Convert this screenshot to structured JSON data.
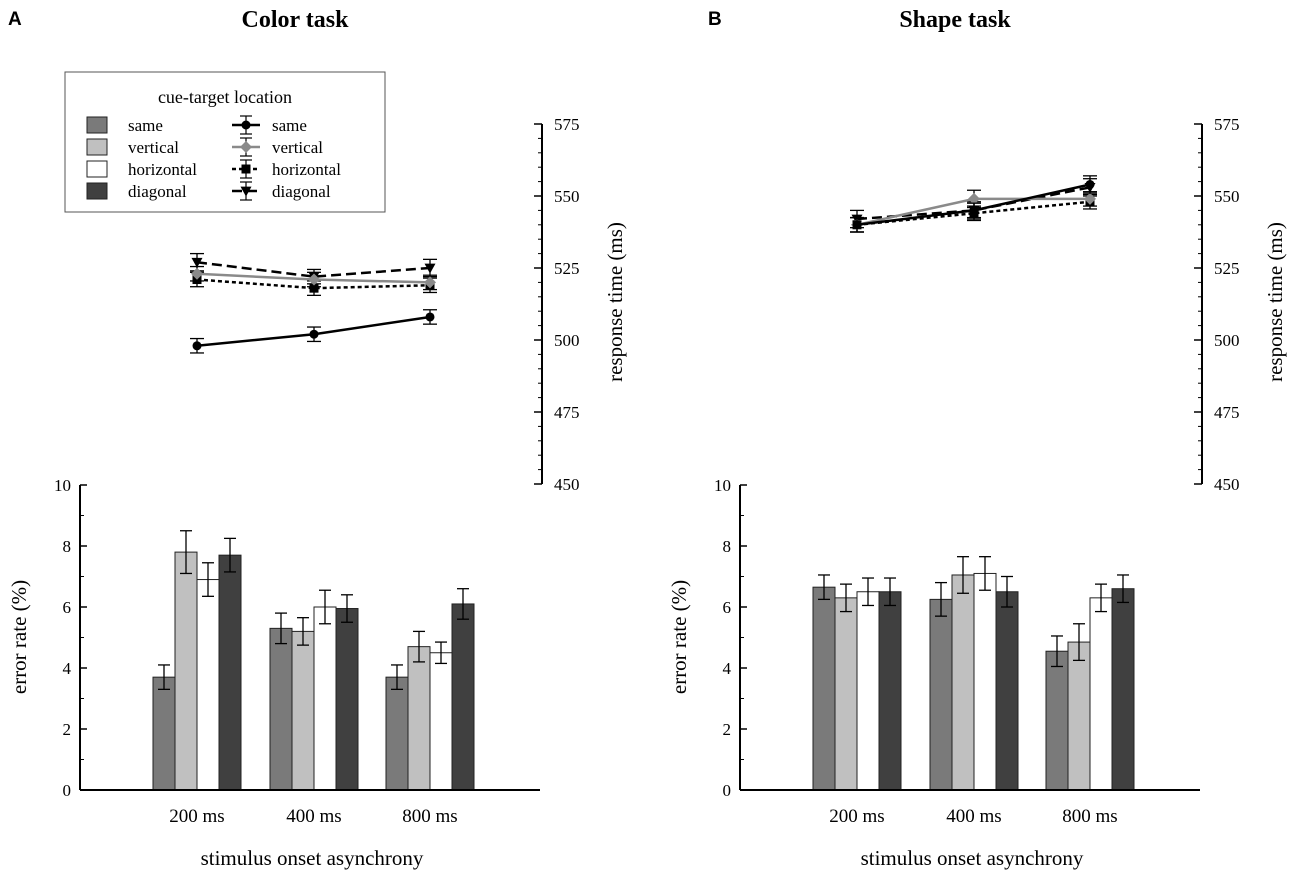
{
  "figure": {
    "legend": {
      "title": "cue-target location",
      "bar_entries": [
        "same",
        "vertical",
        "horizontal",
        "diagonal"
      ],
      "line_entries": [
        "same",
        "vertical",
        "horizontal",
        "diagonal"
      ]
    }
  },
  "colors": {
    "same_bar": "#7a7a7a",
    "vertical_bar": "#c0c0c0",
    "horizontal_bar": "#ffffff",
    "diagonal_bar": "#404040",
    "same_line": "#000000",
    "vertical_line": "#8a8a8a",
    "horizontal_line": "#000000",
    "diagonal_line": "#000000"
  },
  "chart_data": [
    {
      "panel_label": "A",
      "title": "Color task",
      "type": "bar",
      "xlabel": "stimulus onset asynchrony",
      "ylabel": "error rate (%)",
      "ylim": [
        0,
        10
      ],
      "yticks": [
        0,
        2,
        4,
        6,
        8,
        10
      ],
      "categories": [
        "200 ms",
        "400 ms",
        "800 ms"
      ],
      "series": [
        {
          "name": "same",
          "values": [
            3.7,
            5.3,
            3.7
          ],
          "errors": [
            0.4,
            0.5,
            0.4
          ]
        },
        {
          "name": "vertical",
          "values": [
            7.8,
            5.2,
            4.7
          ],
          "errors": [
            0.7,
            0.45,
            0.5
          ]
        },
        {
          "name": "horizontal",
          "values": [
            6.9,
            6.0,
            4.5
          ],
          "errors": [
            0.55,
            0.55,
            0.35
          ]
        },
        {
          "name": "diagonal",
          "values": [
            7.7,
            5.95,
            6.1
          ],
          "errors": [
            0.55,
            0.45,
            0.5
          ]
        }
      ],
      "rt": {
        "type": "line",
        "ylabel": "response time (ms)",
        "ylim": [
          450,
          575
        ],
        "yticks": [
          450,
          475,
          500,
          525,
          550,
          575
        ],
        "series": [
          {
            "name": "same",
            "values": [
              498,
              502,
              508
            ],
            "errors": [
              2.5,
              2.5,
              2.5
            ]
          },
          {
            "name": "vertical",
            "values": [
              523,
              521,
              520
            ],
            "errors": [
              2.5,
              2.5,
              2.5
            ]
          },
          {
            "name": "horizontal",
            "values": [
              521,
              518,
              519
            ],
            "errors": [
              2.5,
              2.5,
              2.5
            ]
          },
          {
            "name": "diagonal",
            "values": [
              527,
              522,
              525
            ],
            "errors": [
              3,
              2.5,
              3
            ]
          }
        ]
      }
    },
    {
      "panel_label": "B",
      "title": "Shape task",
      "type": "bar",
      "xlabel": "stimulus onset asynchrony",
      "ylabel": "error rate (%)",
      "ylim": [
        0,
        10
      ],
      "yticks": [
        0,
        2,
        4,
        6,
        8,
        10
      ],
      "categories": [
        "200 ms",
        "400 ms",
        "800 ms"
      ],
      "series": [
        {
          "name": "same",
          "values": [
            6.65,
            6.25,
            4.55
          ],
          "errors": [
            0.4,
            0.55,
            0.5
          ]
        },
        {
          "name": "vertical",
          "values": [
            6.3,
            7.05,
            4.85
          ],
          "errors": [
            0.45,
            0.6,
            0.6
          ]
        },
        {
          "name": "horizontal",
          "values": [
            6.5,
            7.1,
            6.3
          ],
          "errors": [
            0.45,
            0.55,
            0.45
          ]
        },
        {
          "name": "diagonal",
          "values": [
            6.5,
            6.5,
            6.6
          ],
          "errors": [
            0.45,
            0.5,
            0.45
          ]
        }
      ],
      "rt": {
        "type": "line",
        "ylabel": "response time (ms)",
        "ylim": [
          450,
          575
        ],
        "yticks": [
          450,
          475,
          500,
          525,
          550,
          575
        ],
        "series": [
          {
            "name": "same",
            "values": [
              540,
              545,
              554
            ],
            "errors": [
              2.5,
              2.5,
              3
            ]
          },
          {
            "name": "vertical",
            "values": [
              540,
              549,
              549
            ],
            "errors": [
              2.5,
              3,
              2.5
            ]
          },
          {
            "name": "horizontal",
            "values": [
              540,
              544,
              548
            ],
            "errors": [
              2.5,
              2.5,
              2.5
            ]
          },
          {
            "name": "diagonal",
            "values": [
              542,
              545,
              553
            ],
            "errors": [
              3,
              3,
              3
            ]
          }
        ]
      }
    }
  ]
}
